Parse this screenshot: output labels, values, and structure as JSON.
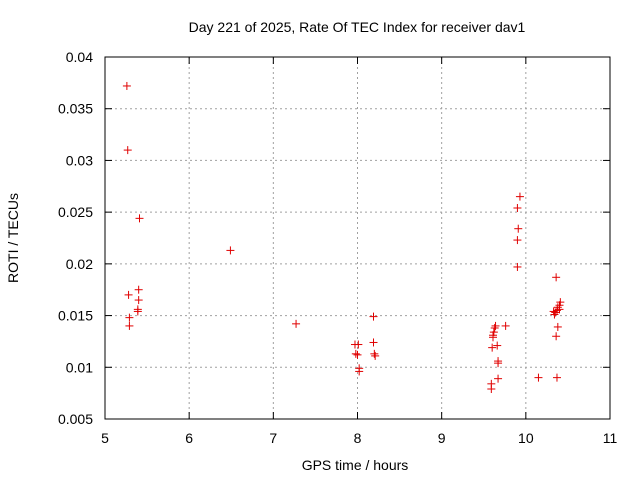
{
  "chart_data": {
    "type": "scatter",
    "title": "Day 221 of 2025, Rate Of TEC Index for receiver dav1",
    "xlabel": "GPS time / hours",
    "ylabel": "ROTI / TECUs",
    "xlim": [
      5,
      11
    ],
    "ylim": [
      0.005,
      0.04
    ],
    "xticks": [
      5,
      6,
      7,
      8,
      9,
      10,
      11
    ],
    "yticks": [
      0.005,
      0.01,
      0.015,
      0.02,
      0.025,
      0.03,
      0.035,
      0.04
    ],
    "xtick_labels": [
      "5",
      "6",
      "7",
      "8",
      "9",
      "10",
      "11"
    ],
    "ytick_labels": [
      "0.005",
      "0.01",
      "0.015",
      "0.02",
      "0.025",
      "0.03",
      "0.035",
      "0.04"
    ],
    "grid": true,
    "marker": "+",
    "color": "#e00000",
    "series": [
      {
        "name": "dav1",
        "points": [
          [
            5.26,
            0.0372
          ],
          [
            5.27,
            0.031
          ],
          [
            5.41,
            0.0244
          ],
          [
            5.28,
            0.017
          ],
          [
            5.29,
            0.0148
          ],
          [
            5.29,
            0.014
          ],
          [
            5.4,
            0.0175
          ],
          [
            5.4,
            0.0165
          ],
          [
            5.39,
            0.0156
          ],
          [
            5.39,
            0.0154
          ],
          [
            6.49,
            0.0213
          ],
          [
            7.27,
            0.0142
          ],
          [
            7.97,
            0.0122
          ],
          [
            8.01,
            0.0122
          ],
          [
            7.98,
            0.0113
          ],
          [
            8.0,
            0.0112
          ],
          [
            8.02,
            0.0099
          ],
          [
            8.02,
            0.0096
          ],
          [
            8.19,
            0.0149
          ],
          [
            8.19,
            0.0124
          ],
          [
            8.2,
            0.0113
          ],
          [
            8.21,
            0.0111
          ],
          [
            9.59,
            0.0084
          ],
          [
            9.59,
            0.0079
          ],
          [
            9.6,
            0.0119
          ],
          [
            9.61,
            0.0129
          ],
          [
            9.61,
            0.0131
          ],
          [
            9.62,
            0.0134
          ],
          [
            9.63,
            0.0138
          ],
          [
            9.64,
            0.014
          ],
          [
            9.66,
            0.0121
          ],
          [
            9.67,
            0.0106
          ],
          [
            9.67,
            0.0104
          ],
          [
            9.67,
            0.0089
          ],
          [
            9.76,
            0.014
          ],
          [
            9.9,
            0.0197
          ],
          [
            9.9,
            0.0223
          ],
          [
            9.91,
            0.0234
          ],
          [
            9.9,
            0.0254
          ],
          [
            9.93,
            0.0265
          ],
          [
            10.15,
            0.009
          ],
          [
            10.33,
            0.0154
          ],
          [
            10.34,
            0.0151
          ],
          [
            10.35,
            0.0153
          ],
          [
            10.36,
            0.0187
          ],
          [
            10.36,
            0.013
          ],
          [
            10.37,
            0.009
          ],
          [
            10.37,
            0.0155
          ],
          [
            10.38,
            0.0158
          ],
          [
            10.38,
            0.0139
          ],
          [
            10.4,
            0.0156
          ],
          [
            10.4,
            0.016
          ],
          [
            10.41,
            0.0163
          ]
        ]
      }
    ]
  }
}
